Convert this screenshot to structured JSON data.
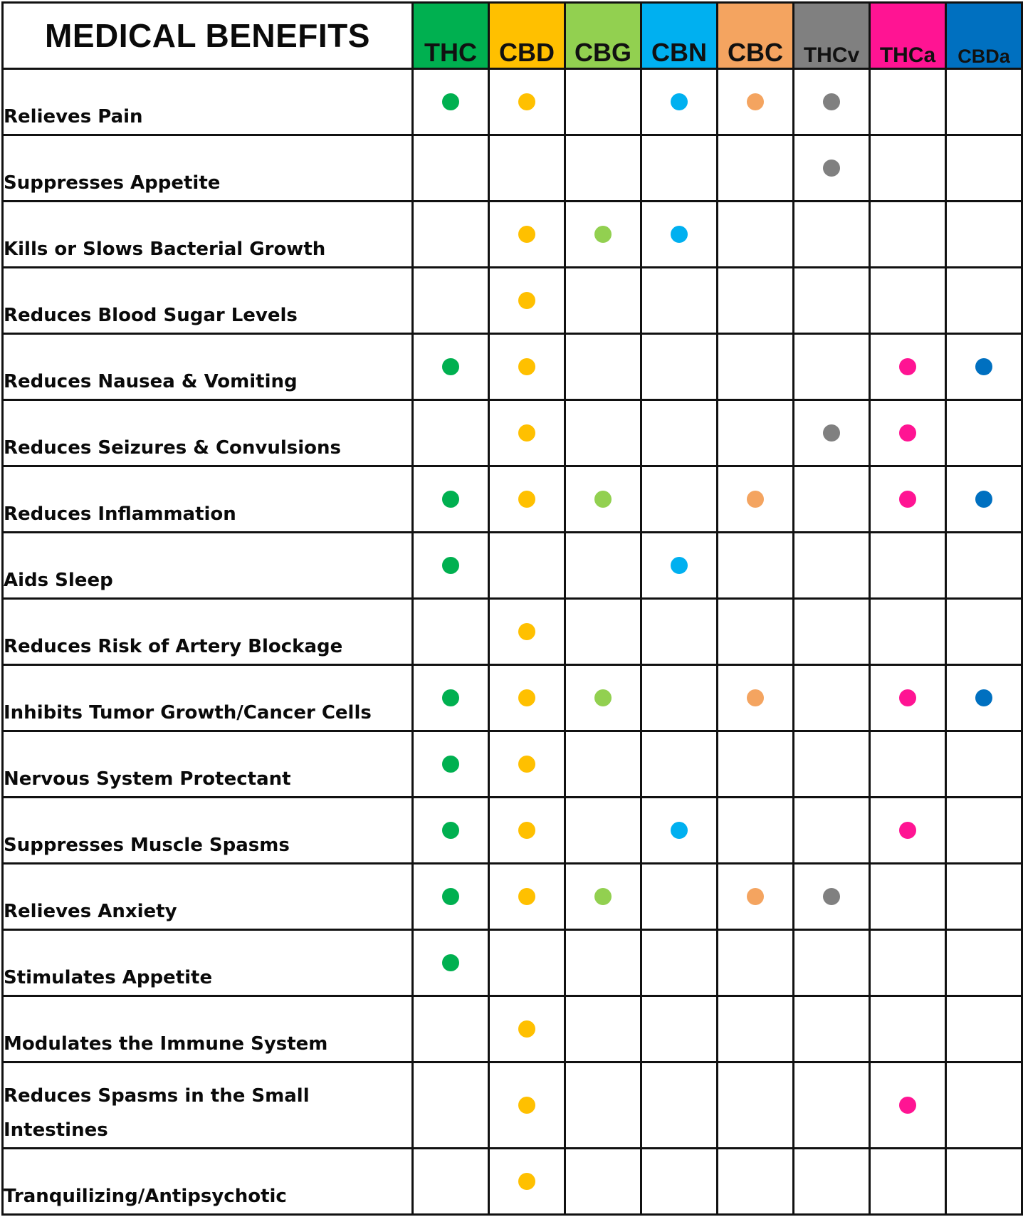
{
  "title": "MEDICAL BENEFITS",
  "compounds": [
    {
      "name": "THC",
      "color": "#00b050"
    },
    {
      "name": "CBD",
      "color": "#ffc000"
    },
    {
      "name": "CBG",
      "color": "#92d050"
    },
    {
      "name": "CBN",
      "color": "#00b0f0"
    },
    {
      "name": "CBC",
      "color": "#f4a460"
    },
    {
      "name": "THCv",
      "color": "#808080"
    },
    {
      "name": "THCa",
      "color": "#ff1493"
    },
    {
      "name": "CBDa",
      "color": "#0070c0"
    }
  ],
  "rows": [
    {
      "benefit": "Relieves Pain",
      "marks": [
        1,
        1,
        0,
        1,
        1,
        1,
        0,
        0
      ]
    },
    {
      "benefit": "Suppresses Appetite",
      "marks": [
        0,
        0,
        0,
        0,
        0,
        1,
        0,
        0
      ]
    },
    {
      "benefit": "Kills or Slows Bacterial Growth",
      "marks": [
        0,
        1,
        1,
        1,
        0,
        0,
        0,
        0
      ]
    },
    {
      "benefit": "Reduces Blood Sugar Levels",
      "marks": [
        0,
        1,
        0,
        0,
        0,
        0,
        0,
        0
      ]
    },
    {
      "benefit": "Reduces Nausea & Vomiting",
      "marks": [
        1,
        1,
        0,
        0,
        0,
        0,
        1,
        1
      ]
    },
    {
      "benefit": "Reduces Seizures & Convulsions",
      "marks": [
        0,
        1,
        0,
        0,
        0,
        1,
        1,
        0
      ]
    },
    {
      "benefit": "Reduces Inflammation",
      "marks": [
        1,
        1,
        1,
        0,
        1,
        0,
        1,
        1
      ]
    },
    {
      "benefit": "Aids Sleep",
      "marks": [
        1,
        0,
        0,
        1,
        0,
        0,
        0,
        0
      ]
    },
    {
      "benefit": "Reduces Risk of Artery Blockage",
      "marks": [
        0,
        1,
        0,
        0,
        0,
        0,
        0,
        0
      ]
    },
    {
      "benefit": "Inhibits Tumor Growth/Cancer Cells",
      "marks": [
        1,
        1,
        1,
        0,
        1,
        0,
        1,
        1
      ]
    },
    {
      "benefit": "Nervous System Protectant",
      "marks": [
        1,
        1,
        0,
        0,
        0,
        0,
        0,
        0
      ]
    },
    {
      "benefit": "Suppresses Muscle Spasms",
      "marks": [
        1,
        1,
        0,
        1,
        0,
        0,
        1,
        0
      ]
    },
    {
      "benefit": "Relieves Anxiety",
      "marks": [
        1,
        1,
        1,
        0,
        1,
        1,
        0,
        0
      ]
    },
    {
      "benefit": "Stimulates Appetite",
      "marks": [
        1,
        0,
        0,
        0,
        0,
        0,
        0,
        0
      ]
    },
    {
      "benefit": "Modulates the Immune System",
      "marks": [
        0,
        1,
        0,
        0,
        0,
        0,
        0,
        0
      ]
    },
    {
      "benefit": "Reduces Spasms in the Small Intestines",
      "marks": [
        0,
        1,
        0,
        0,
        0,
        0,
        1,
        0
      ]
    },
    {
      "benefit": "Tranquilizing/Antipsychotic",
      "marks": [
        0,
        1,
        0,
        0,
        0,
        0,
        0,
        0
      ]
    }
  ]
}
